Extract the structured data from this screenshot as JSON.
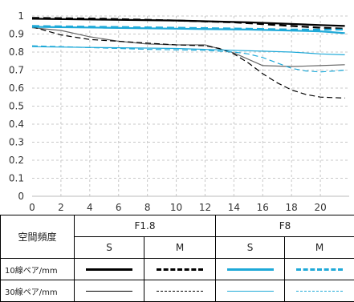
{
  "chart_data": {
    "type": "line",
    "xlim": [
      0,
      22
    ],
    "ylim": [
      0,
      1
    ],
    "x_ticks": [
      "0",
      "2",
      "4",
      "6",
      "8",
      "10",
      "12",
      "14",
      "16",
      "18",
      "20"
    ],
    "y_ticks": [
      "0",
      "0.1",
      "0.2",
      "0.3",
      "0.4",
      "0.5",
      "0.6",
      "0.7",
      "0.8",
      "0.9",
      "1"
    ],
    "grid": true,
    "series": [
      {
        "key": "f18_10_s",
        "color": "#000000",
        "stroke": "solid",
        "thick": true,
        "x": [
          0,
          5,
          10,
          15,
          20,
          21.7
        ],
        "y": [
          0.985,
          0.98,
          0.975,
          0.965,
          0.95,
          0.945
        ]
      },
      {
        "key": "f18_10_m",
        "color": "#000000",
        "stroke": "dashed",
        "thick": true,
        "x": [
          0,
          5,
          10,
          14,
          16,
          18,
          20,
          21.7
        ],
        "y": [
          0.99,
          0.985,
          0.975,
          0.965,
          0.955,
          0.945,
          0.935,
          0.93
        ]
      },
      {
        "key": "f18_30_s",
        "color": "#666666",
        "stroke": "solid",
        "thick": false,
        "x": [
          0,
          2,
          4,
          6,
          8,
          10,
          12,
          14,
          16,
          18,
          20,
          21.7
        ],
        "y": [
          0.935,
          0.92,
          0.885,
          0.86,
          0.845,
          0.84,
          0.84,
          0.795,
          0.725,
          0.72,
          0.725,
          0.73
        ]
      },
      {
        "key": "f18_30_m",
        "color": "#000000",
        "stroke": "dashed",
        "thick": false,
        "x": [
          0,
          2,
          4,
          6,
          8,
          10,
          12,
          13,
          14,
          15,
          16,
          17,
          18,
          19,
          20,
          21.7
        ],
        "y": [
          0.94,
          0.895,
          0.87,
          0.86,
          0.85,
          0.84,
          0.835,
          0.82,
          0.79,
          0.74,
          0.68,
          0.63,
          0.59,
          0.565,
          0.55,
          0.545
        ]
      },
      {
        "key": "f8_10_s",
        "color": "#1ea9d8",
        "stroke": "solid",
        "thick": true,
        "x": [
          0,
          5,
          10,
          15,
          20,
          21.7
        ],
        "y": [
          0.94,
          0.935,
          0.93,
          0.925,
          0.915,
          0.905
        ]
      },
      {
        "key": "f8_10_m",
        "color": "#1ea9d8",
        "stroke": "dashed",
        "thick": true,
        "x": [
          0,
          5,
          10,
          15,
          18,
          20,
          21.7
        ],
        "y": [
          0.945,
          0.94,
          0.935,
          0.93,
          0.925,
          0.925,
          0.925
        ]
      },
      {
        "key": "f8_30_s",
        "color": "#1ea9d8",
        "stroke": "solid",
        "thick": false,
        "x": [
          0,
          5,
          10,
          14,
          16,
          18,
          20,
          21.7
        ],
        "y": [
          0.83,
          0.825,
          0.82,
          0.81,
          0.805,
          0.8,
          0.79,
          0.785
        ]
      },
      {
        "key": "f8_30_m",
        "color": "#1ea9d8",
        "stroke": "dashed",
        "thick": false,
        "x": [
          0,
          4,
          8,
          12,
          14,
          15,
          16,
          17,
          18,
          19,
          20,
          21,
          21.7
        ],
        "y": [
          0.835,
          0.825,
          0.815,
          0.81,
          0.8,
          0.79,
          0.77,
          0.74,
          0.71,
          0.695,
          0.69,
          0.695,
          0.7
        ]
      }
    ]
  },
  "legend": {
    "header_label": "空間頻度",
    "groups": [
      "F1.8",
      "F8"
    ],
    "subheaders": [
      "S",
      "M",
      "S",
      "M"
    ],
    "row_labels": [
      "10線ペア/mm",
      "30線ペア/mm"
    ]
  }
}
